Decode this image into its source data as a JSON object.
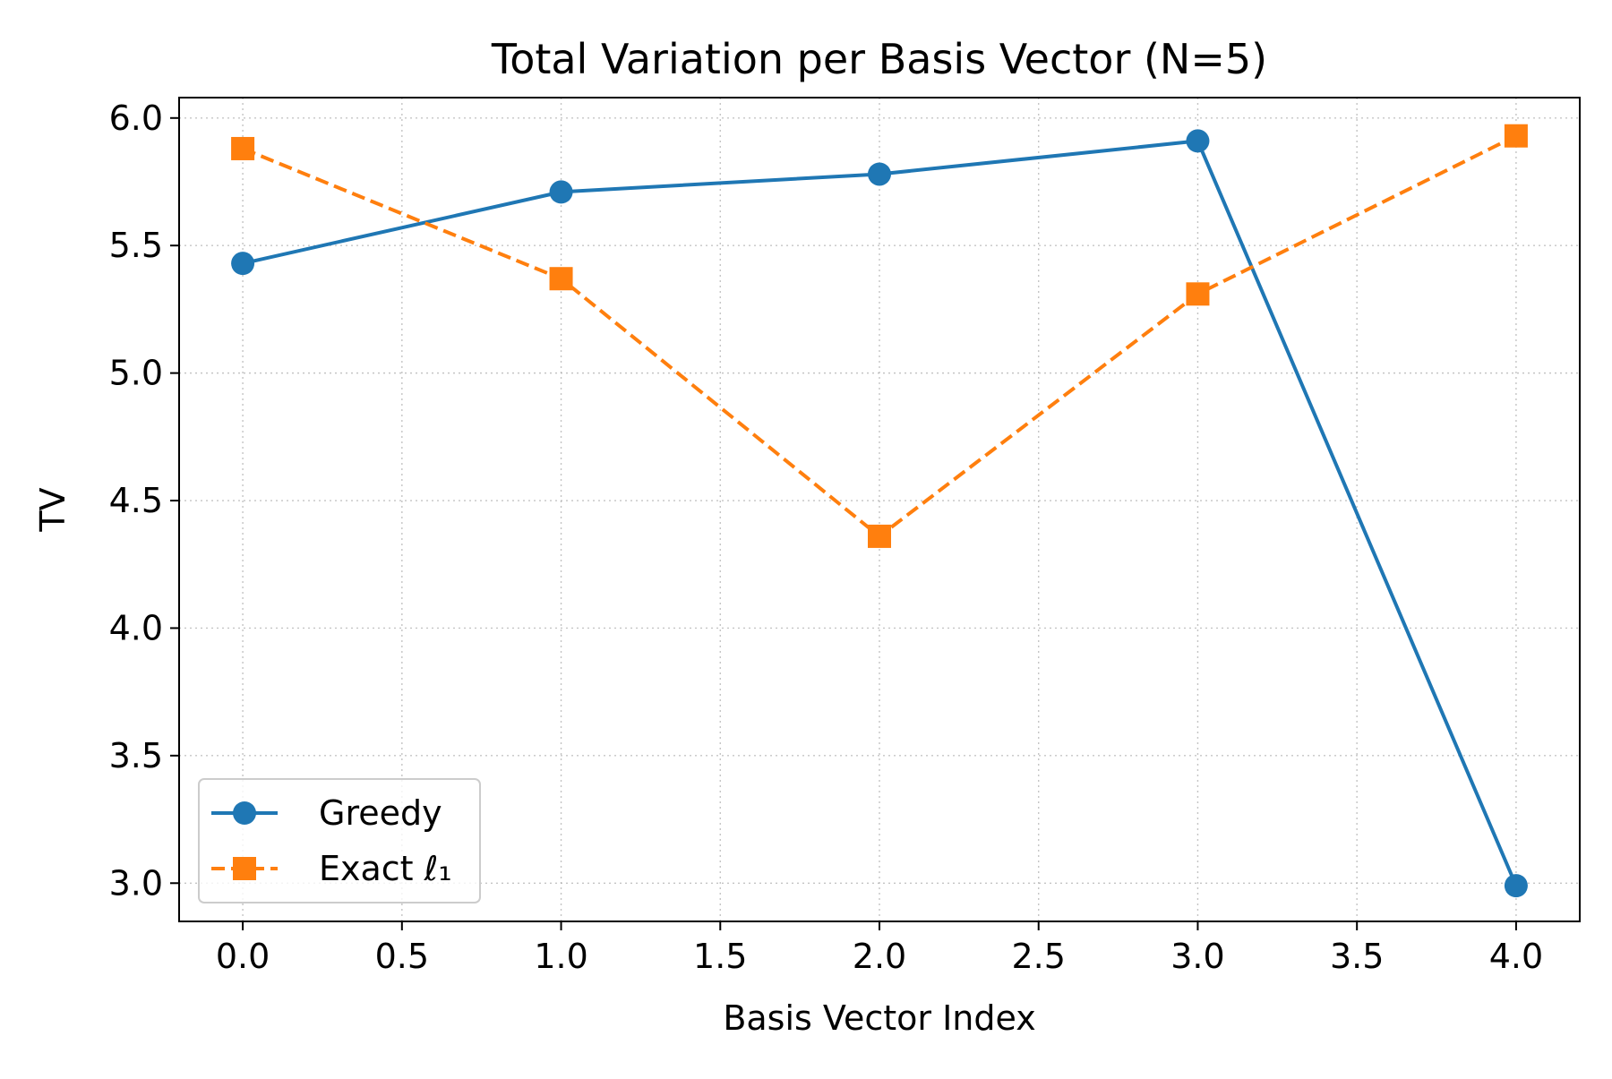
{
  "chart_data": {
    "type": "line",
    "title": "Total Variation per Basis Vector (N=5)",
    "xlabel": "Basis Vector Index",
    "ylabel": "TV",
    "x": [
      0,
      1,
      2,
      3,
      4
    ],
    "series": [
      {
        "name": "Greedy",
        "values": [
          5.43,
          5.71,
          5.78,
          5.91,
          2.99
        ],
        "color": "#1f77b4",
        "marker": "circle",
        "line_style": "solid"
      },
      {
        "name": "Exact ℓ₁",
        "values": [
          5.88,
          5.37,
          4.36,
          5.31,
          5.93
        ],
        "color": "#ff7f0e",
        "marker": "square",
        "line_style": "dashed"
      }
    ],
    "xlim": [
      -0.2,
      4.2
    ],
    "ylim": [
      2.85,
      6.08
    ],
    "xticks": [
      0.0,
      0.5,
      1.0,
      1.5,
      2.0,
      2.5,
      3.0,
      3.5,
      4.0
    ],
    "yticks": [
      3.0,
      3.5,
      4.0,
      4.5,
      5.0,
      5.5,
      6.0
    ],
    "grid": true,
    "legend_position": "lower-left"
  }
}
